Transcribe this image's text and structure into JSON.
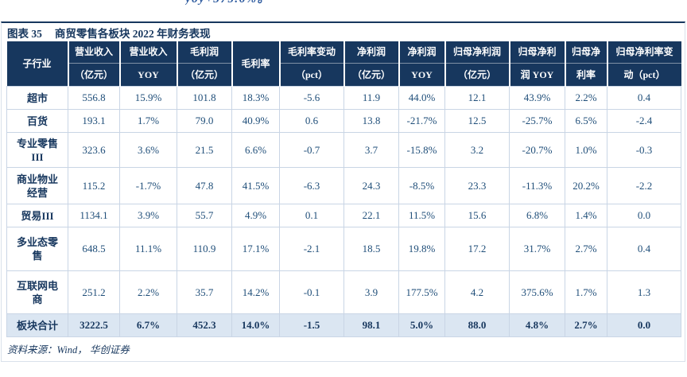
{
  "page": {
    "top_fragment": "yoy+375.6%。"
  },
  "figure": {
    "title_label": "图表 35",
    "title_text": "商贸零售各板块 2022 年财务表现",
    "source": "资料来源：Wind， 华创证券"
  },
  "table": {
    "header": [
      {
        "lines": [
          "子行业"
        ]
      },
      {
        "lines": [
          "营业收入",
          "（亿元）"
        ]
      },
      {
        "lines": [
          "营业收入",
          "YOY"
        ]
      },
      {
        "lines": [
          "毛利润",
          "（亿元）"
        ]
      },
      {
        "lines": [
          "毛利率"
        ]
      },
      {
        "lines": [
          "毛利率变动",
          "（pct）"
        ]
      },
      {
        "lines": [
          "净利润",
          "（亿元）"
        ]
      },
      {
        "lines": [
          "净利润",
          "YOY"
        ]
      },
      {
        "lines": [
          "归母净利润",
          "（亿元）"
        ]
      },
      {
        "lines": [
          "归母净利",
          "润 YOY"
        ]
      },
      {
        "lines": [
          "归母净",
          "利率"
        ]
      },
      {
        "lines": [
          "归母净利率变",
          "动（pct）"
        ]
      }
    ],
    "rows": [
      {
        "name": "超市",
        "values": [
          "556.8",
          "15.9%",
          "101.8",
          "18.3%",
          "-5.6",
          "11.9",
          "44.0%",
          "12.1",
          "43.9%",
          "2.2%",
          "0.4"
        ]
      },
      {
        "name": "百货",
        "values": [
          "193.1",
          "1.7%",
          "79.0",
          "40.9%",
          "0.6",
          "13.8",
          "-21.7%",
          "12.5",
          "-25.7%",
          "6.5%",
          "-2.4"
        ]
      },
      {
        "name": "专业零售III",
        "values": [
          "323.6",
          "3.6%",
          "21.5",
          "6.6%",
          "-0.7",
          "3.7",
          "-15.8%",
          "3.2",
          "-20.7%",
          "1.0%",
          "-0.3"
        ]
      },
      {
        "name": "商业物业经营",
        "values": [
          "115.2",
          "-1.7%",
          "47.8",
          "41.5%",
          "-6.3",
          "24.3",
          "-8.5%",
          "23.3",
          "-11.3%",
          "20.2%",
          "-2.2"
        ]
      },
      {
        "name": "贸易III",
        "values": [
          "1134.1",
          "3.9%",
          "55.7",
          "4.9%",
          "0.1",
          "22.1",
          "11.5%",
          "15.6",
          "6.8%",
          "1.4%",
          "0.0"
        ]
      },
      {
        "name": "多业态零售",
        "values": [
          "648.5",
          "11.1%",
          "110.9",
          "17.1%",
          "-2.1",
          "18.5",
          "19.8%",
          "17.2",
          "31.7%",
          "2.7%",
          "0.4"
        ]
      },
      {
        "name": "互联网电商",
        "values": [
          "251.2",
          "2.2%",
          "35.7",
          "14.2%",
          "-0.1",
          "3.9",
          "177.5%",
          "4.2",
          "375.6%",
          "1.7%",
          "1.3"
        ]
      }
    ],
    "total_row": {
      "name": "板块合计",
      "values": [
        "3222.5",
        "6.7%",
        "452.3",
        "14.0%",
        "-1.5",
        "98.1",
        "5.0%",
        "88.0",
        "4.8%",
        "2.7%",
        "0.0"
      ]
    }
  },
  "colors": {
    "header_bg": "#17375E",
    "dark_navy": "#17375E",
    "accent_text": "#1F4E79",
    "accent_mid": "#2E5B9F",
    "total_row_bg": "#DBE6F2",
    "grid_border": "#C9D5E5"
  }
}
